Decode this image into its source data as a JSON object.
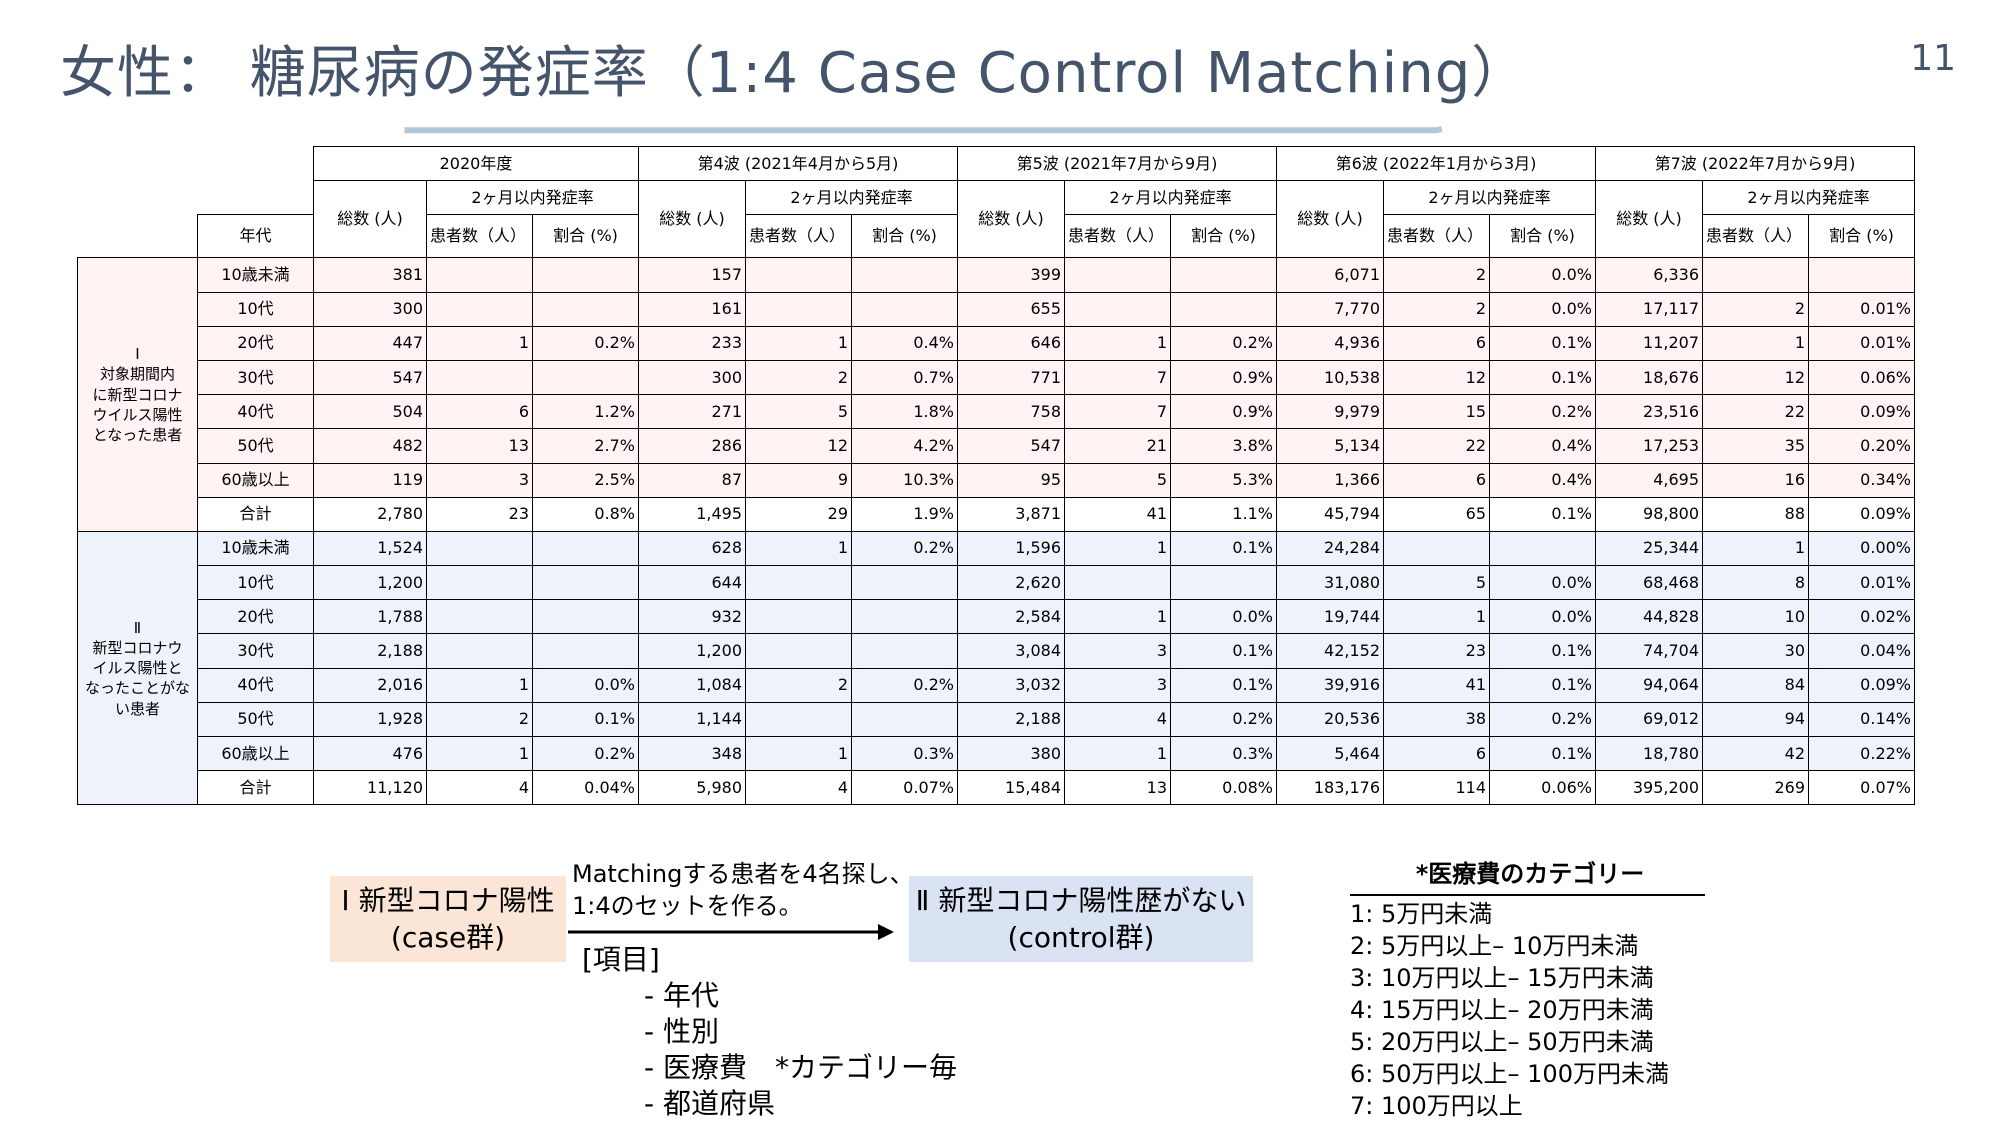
{
  "title": "女性： 糖尿病の発症率（1:4 Case Control Matching）",
  "page_number": "11",
  "colors": {
    "title": "#44546a",
    "accent_light": "#b4c7d9",
    "accent_dark": "#1f3864",
    "group1_bg": "#fff3f3",
    "group2_bg": "#eef3fb",
    "case_box": "#fbe5d6",
    "control_box": "#dae3f3"
  },
  "table": {
    "periods": [
      "2020年度",
      "第4波 (2021年4月から5月)",
      "第5波 (2021年7月から9月)",
      "第6波 (2022年1月から3月)",
      "第7波 (2022年7月から9月)"
    ],
    "total_label": "総数 (人)",
    "incidence_label": "2ヶ月以内発症率",
    "patients_label": "患者数（人）",
    "ratio_label": "割合 (%)",
    "age_header": "年代",
    "groups": [
      {
        "label": "Ⅰ\n対象期間内\nに新型コロナ\nウイルス陽性\nとなった患者",
        "rows": [
          [
            "10歳未満",
            "381",
            "",
            "",
            "157",
            "",
            "",
            "399",
            "",
            "",
            "6,071",
            "2",
            "0.0%",
            "6,336",
            "",
            ""
          ],
          [
            "10代",
            "300",
            "",
            "",
            "161",
            "",
            "",
            "655",
            "",
            "",
            "7,770",
            "2",
            "0.0%",
            "17,117",
            "2",
            "0.01%"
          ],
          [
            "20代",
            "447",
            "1",
            "0.2%",
            "233",
            "1",
            "0.4%",
            "646",
            "1",
            "0.2%",
            "4,936",
            "6",
            "0.1%",
            "11,207",
            "1",
            "0.01%"
          ],
          [
            "30代",
            "547",
            "",
            "",
            "300",
            "2",
            "0.7%",
            "771",
            "7",
            "0.9%",
            "10,538",
            "12",
            "0.1%",
            "18,676",
            "12",
            "0.06%"
          ],
          [
            "40代",
            "504",
            "6",
            "1.2%",
            "271",
            "5",
            "1.8%",
            "758",
            "7",
            "0.9%",
            "9,979",
            "15",
            "0.2%",
            "23,516",
            "22",
            "0.09%"
          ],
          [
            "50代",
            "482",
            "13",
            "2.7%",
            "286",
            "12",
            "4.2%",
            "547",
            "21",
            "3.8%",
            "5,134",
            "22",
            "0.4%",
            "17,253",
            "35",
            "0.20%"
          ],
          [
            "60歳以上",
            "119",
            "3",
            "2.5%",
            "87",
            "9",
            "10.3%",
            "95",
            "5",
            "5.3%",
            "1,366",
            "6",
            "0.4%",
            "4,695",
            "16",
            "0.34%"
          ],
          [
            "合計",
            "2,780",
            "23",
            "0.8%",
            "1,495",
            "29",
            "1.9%",
            "3,871",
            "41",
            "1.1%",
            "45,794",
            "65",
            "0.1%",
            "98,800",
            "88",
            "0.09%"
          ]
        ]
      },
      {
        "label": "Ⅱ\n新型コロナウ\nイルス陽性と\nなったことがな\nい患者",
        "rows": [
          [
            "10歳未満",
            "1,524",
            "",
            "",
            "628",
            "1",
            "0.2%",
            "1,596",
            "1",
            "0.1%",
            "24,284",
            "",
            "",
            "25,344",
            "1",
            "0.00%"
          ],
          [
            "10代",
            "1,200",
            "",
            "",
            "644",
            "",
            "",
            "2,620",
            "",
            "",
            "31,080",
            "5",
            "0.0%",
            "68,468",
            "8",
            "0.01%"
          ],
          [
            "20代",
            "1,788",
            "",
            "",
            "932",
            "",
            "",
            "2,584",
            "1",
            "0.0%",
            "19,744",
            "1",
            "0.0%",
            "44,828",
            "10",
            "0.02%"
          ],
          [
            "30代",
            "2,188",
            "",
            "",
            "1,200",
            "",
            "",
            "3,084",
            "3",
            "0.1%",
            "42,152",
            "23",
            "0.1%",
            "74,704",
            "30",
            "0.04%"
          ],
          [
            "40代",
            "2,016",
            "1",
            "0.0%",
            "1,084",
            "2",
            "0.2%",
            "3,032",
            "3",
            "0.1%",
            "39,916",
            "41",
            "0.1%",
            "94,064",
            "84",
            "0.09%"
          ],
          [
            "50代",
            "1,928",
            "2",
            "0.1%",
            "1,144",
            "",
            "",
            "2,188",
            "4",
            "0.2%",
            "20,536",
            "38",
            "0.2%",
            "69,012",
            "94",
            "0.14%"
          ],
          [
            "60歳以上",
            "476",
            "1",
            "0.2%",
            "348",
            "1",
            "0.3%",
            "380",
            "1",
            "0.3%",
            "5,464",
            "6",
            "0.1%",
            "18,780",
            "42",
            "0.22%"
          ],
          [
            "合計",
            "11,120",
            "4",
            "0.04%",
            "5,980",
            "4",
            "0.07%",
            "15,484",
            "13",
            "0.08%",
            "183,176",
            "114",
            "0.06%",
            "395,200",
            "269",
            "0.07%"
          ]
        ]
      }
    ]
  },
  "diagram": {
    "case_line1": "Ⅰ 新型コロナ陽性",
    "case_line2": "(case群)",
    "control_line1": "Ⅱ 新型コロナ陽性歴がない",
    "control_line2": "(control群)",
    "arrow_text1": "Matchingする患者を4名探し、",
    "arrow_text2": "1:4のセットを作る。",
    "items_header": "[項目]",
    "items": [
      "- 年代",
      "- 性別",
      "- 医療費　*カテゴリー毎",
      "- 都道府県"
    ],
    "arrow_icon": "right-arrow-icon"
  },
  "categories": {
    "title": "*医療費のカテゴリー",
    "items": [
      "1:  5万円未満",
      "2:  5万円以上– 10万円未満",
      "3: 10万円以上– 15万円未満",
      "4: 15万円以上– 20万円未満",
      "5: 20万円以上– 50万円未満",
      "6: 50万円以上– 100万円未満",
      "7: 100万円以上"
    ]
  }
}
